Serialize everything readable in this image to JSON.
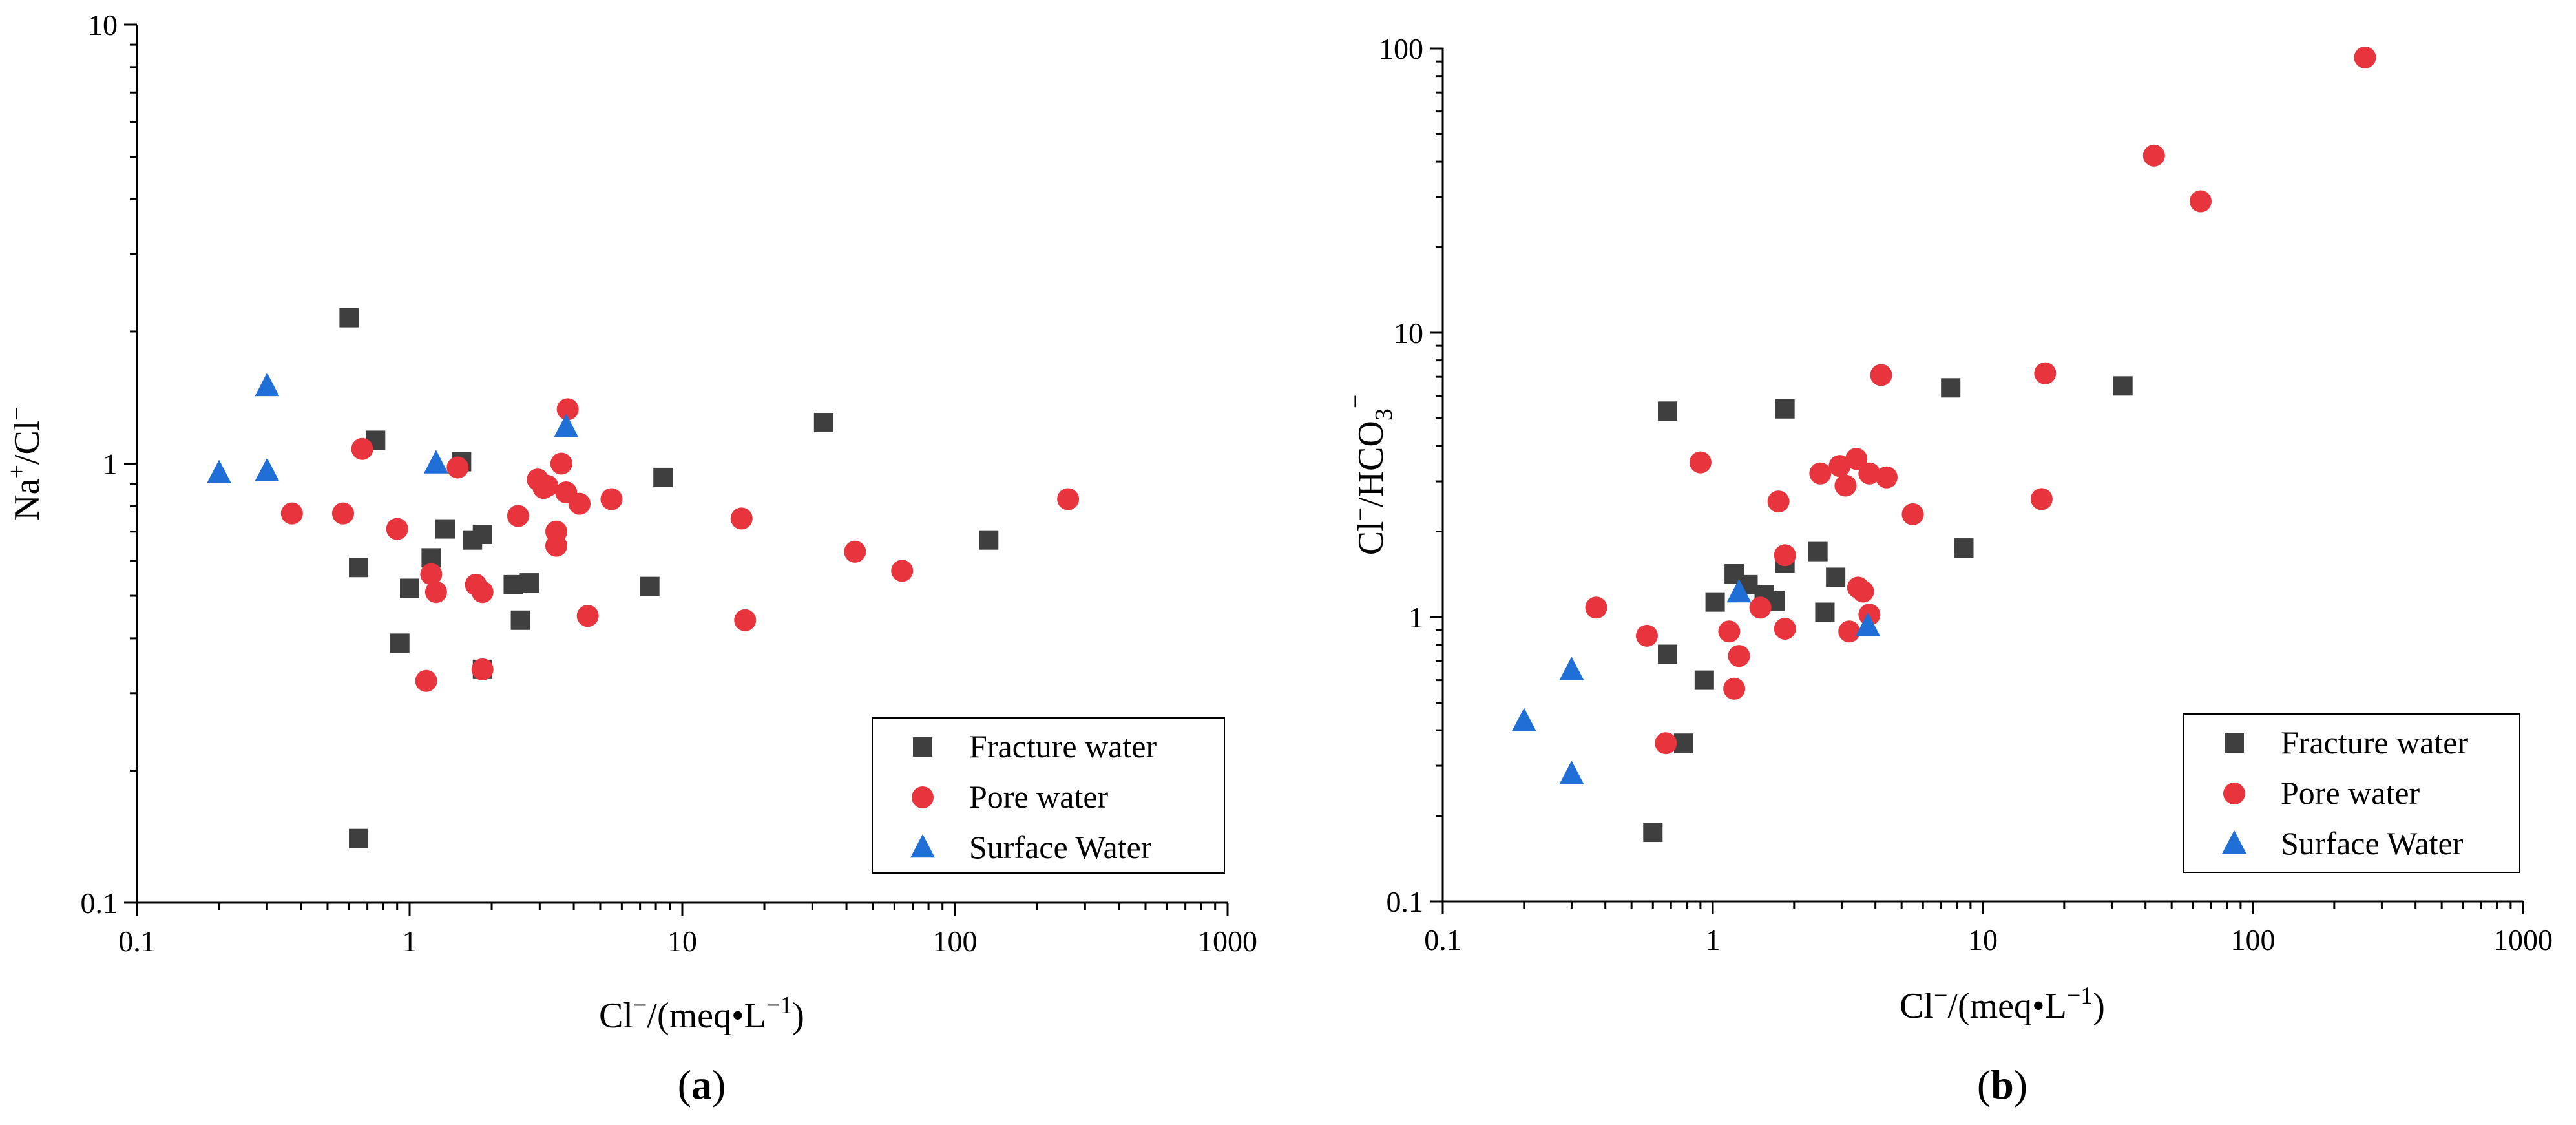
{
  "chart_data": [
    {
      "type": "scatter",
      "panel_label": {
        "open": "(",
        "letter": "a",
        "close": ")"
      },
      "xscale": "log",
      "yscale": "log",
      "xlim": [
        0.1,
        1000
      ],
      "ylim": [
        0.1,
        10
      ],
      "xticks": [
        "0.1",
        "1",
        "10",
        "100",
        "1000"
      ],
      "yticks": [
        "0.1",
        "1",
        "10"
      ],
      "xlabel": {
        "pre": "Cl",
        "sup1": "−",
        "mid": "/(meq•L",
        "sup2": "−1",
        "post": ")"
      },
      "ylabel": {
        "pre": "Na",
        "sup1": "+",
        "mid": "/Cl",
        "sup2": "−"
      },
      "legend_position": "bottom-right",
      "series": [
        {
          "name": "Fracture water",
          "marker": "square",
          "color": "#3f3f3f",
          "points": [
            [
              0.6,
              2.15
            ],
            [
              0.75,
              1.13
            ],
            [
              0.65,
              0.58
            ],
            [
              1.0,
              0.52
            ],
            [
              0.92,
              0.39
            ],
            [
              1.2,
              0.61
            ],
            [
              1.35,
              0.71
            ],
            [
              1.55,
              1.01
            ],
            [
              1.7,
              0.67
            ],
            [
              1.85,
              0.69
            ],
            [
              1.85,
              0.34
            ],
            [
              2.4,
              0.53
            ],
            [
              2.75,
              0.535
            ],
            [
              2.55,
              0.44
            ],
            [
              7.6,
              0.525
            ],
            [
              8.5,
              0.93
            ],
            [
              33,
              1.24
            ],
            [
              133,
              0.67
            ],
            [
              0.65,
              0.14
            ]
          ]
        },
        {
          "name": "Pore water",
          "marker": "circle",
          "color": "#e8343d",
          "points": [
            [
              0.37,
              0.77
            ],
            [
              0.57,
              0.77
            ],
            [
              0.67,
              1.08
            ],
            [
              0.9,
              0.71
            ],
            [
              1.15,
              0.32
            ],
            [
              1.2,
              0.56
            ],
            [
              1.25,
              0.51
            ],
            [
              1.5,
              0.98
            ],
            [
              1.75,
              0.53
            ],
            [
              1.85,
              0.51
            ],
            [
              1.85,
              0.34
            ],
            [
              2.5,
              0.76
            ],
            [
              2.95,
              0.92
            ],
            [
              3.1,
              0.88
            ],
            [
              3.2,
              0.89
            ],
            [
              3.45,
              0.7
            ],
            [
              3.45,
              0.65
            ],
            [
              3.6,
              1.0
            ],
            [
              3.75,
              0.86
            ],
            [
              3.8,
              1.33
            ],
            [
              4.2,
              0.81
            ],
            [
              4.5,
              0.45
            ],
            [
              5.5,
              0.83
            ],
            [
              16.5,
              0.75
            ],
            [
              17,
              0.44
            ],
            [
              43,
              0.63
            ],
            [
              64,
              0.57
            ],
            [
              260,
              0.83
            ]
          ]
        },
        {
          "name": "Surface Water",
          "marker": "triangle",
          "color": "#1f6fd6",
          "points": [
            [
              0.2,
              0.95
            ],
            [
              0.3,
              1.5
            ],
            [
              0.3,
              0.96
            ],
            [
              1.25,
              1.0
            ],
            [
              3.75,
              1.21
            ]
          ]
        }
      ]
    },
    {
      "type": "scatter",
      "panel_label": {
        "open": "(",
        "letter": "b",
        "close": ")"
      },
      "xscale": "log",
      "yscale": "log",
      "xlim": [
        0.1,
        1000
      ],
      "ylim": [
        0.1,
        100
      ],
      "xticks": [
        "0.1",
        "1",
        "10",
        "100",
        "1000"
      ],
      "yticks": [
        "0.1",
        "1",
        "10",
        "100"
      ],
      "xlabel": {
        "pre": "Cl",
        "sup1": "−",
        "mid": "/(meq•L",
        "sup2": "−1",
        "post": ")"
      },
      "ylabel": {
        "pre": "Cl",
        "sup1": "−",
        "mid": "/HCO",
        "sub": "3",
        "sup2": "−"
      },
      "legend_position": "bottom-right",
      "series": [
        {
          "name": "Fracture water",
          "marker": "square",
          "color": "#3f3f3f",
          "points": [
            [
              0.6,
              0.175
            ],
            [
              0.68,
              5.3
            ],
            [
              0.68,
              0.74
            ],
            [
              0.78,
              0.36
            ],
            [
              0.93,
              0.6
            ],
            [
              1.02,
              1.13
            ],
            [
              1.2,
              1.42
            ],
            [
              1.35,
              1.3
            ],
            [
              1.55,
              1.2
            ],
            [
              1.7,
              1.14
            ],
            [
              1.85,
              1.55
            ],
            [
              1.85,
              5.4
            ],
            [
              2.45,
              1.7
            ],
            [
              2.6,
              1.04
            ],
            [
              2.85,
              1.38
            ],
            [
              7.6,
              6.4
            ],
            [
              8.5,
              1.75
            ],
            [
              33,
              6.5
            ]
          ]
        },
        {
          "name": "Pore water",
          "marker": "circle",
          "color": "#e8343d",
          "points": [
            [
              0.37,
              1.08
            ],
            [
              0.57,
              0.86
            ],
            [
              0.67,
              0.36
            ],
            [
              0.9,
              3.5
            ],
            [
              1.15,
              0.89
            ],
            [
              1.2,
              0.56
            ],
            [
              1.25,
              0.73
            ],
            [
              1.5,
              1.08
            ],
            [
              1.75,
              2.55
            ],
            [
              1.85,
              1.65
            ],
            [
              1.85,
              0.91
            ],
            [
              2.5,
              3.2
            ],
            [
              2.95,
              3.4
            ],
            [
              3.1,
              2.9
            ],
            [
              3.2,
              0.89
            ],
            [
              3.4,
              3.6
            ],
            [
              3.45,
              1.27
            ],
            [
              3.6,
              1.23
            ],
            [
              3.8,
              1.02
            ],
            [
              3.8,
              3.2
            ],
            [
              4.2,
              7.1
            ],
            [
              4.4,
              3.1
            ],
            [
              5.5,
              2.3
            ],
            [
              16.5,
              2.6
            ],
            [
              17,
              7.2
            ],
            [
              43,
              42
            ],
            [
              64,
              29
            ],
            [
              260,
              93
            ]
          ]
        },
        {
          "name": "Surface Water",
          "marker": "triangle",
          "color": "#1f6fd6",
          "points": [
            [
              0.2,
              0.43
            ],
            [
              0.3,
              0.65
            ],
            [
              0.3,
              0.28
            ],
            [
              1.25,
              1.22
            ],
            [
              3.75,
              0.93
            ]
          ]
        }
      ]
    }
  ]
}
